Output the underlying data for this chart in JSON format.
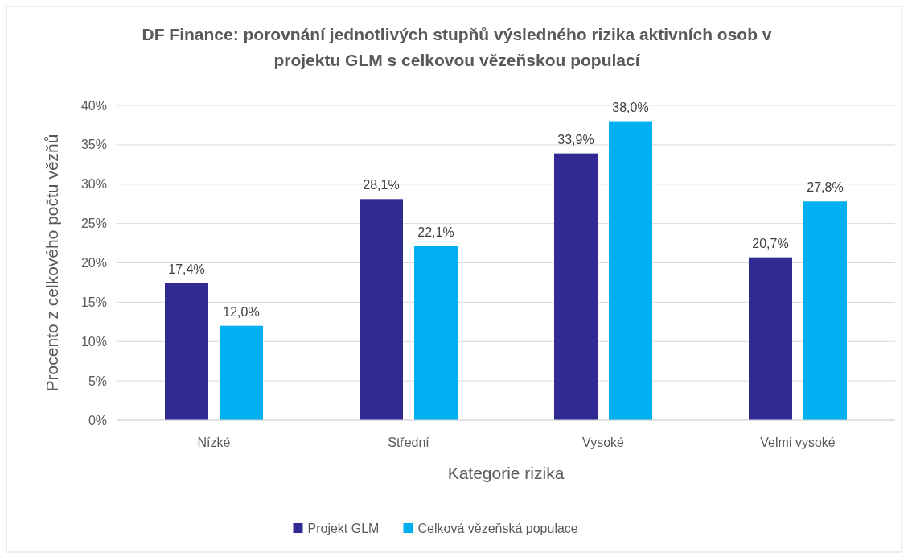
{
  "chart_data": {
    "type": "bar",
    "title": "DF Finance: porovnání jednotlivých stupňů výsledného rizika aktivních osob v projektu GLM s celkovou vězeňskou populací",
    "xlabel": "Kategorie rizika",
    "ylabel": "Procento z celkového počtu vězňů",
    "categories": [
      "Nízké",
      "Střední",
      "Vysoké",
      "Velmi vysoké"
    ],
    "series": [
      {
        "name": "Projekt GLM",
        "color": "#312a93",
        "values": [
          17.4,
          28.1,
          33.9,
          20.7
        ],
        "value_labels": [
          "17,4%",
          "28,1%",
          "33,9%",
          "20,7%"
        ]
      },
      {
        "name": "Celková vězeňská populace",
        "color": "#00b0f0",
        "values": [
          12.0,
          22.1,
          38.0,
          27.8
        ],
        "value_labels": [
          "12,0%",
          "22,1%",
          "38,0%",
          "27,8%"
        ]
      }
    ],
    "ylim": [
      0,
      40
    ],
    "yticks": [
      {
        "value": 0,
        "label": "0%"
      },
      {
        "value": 5,
        "label": "5%"
      },
      {
        "value": 10,
        "label": "10%"
      },
      {
        "value": 15,
        "label": "15%"
      },
      {
        "value": 20,
        "label": "20%"
      },
      {
        "value": 25,
        "label": "25%"
      },
      {
        "value": 30,
        "label": "30%"
      },
      {
        "value": 35,
        "label": "35%"
      },
      {
        "value": 40,
        "label": "40%"
      }
    ],
    "grid": "y",
    "legend": "bottom"
  }
}
